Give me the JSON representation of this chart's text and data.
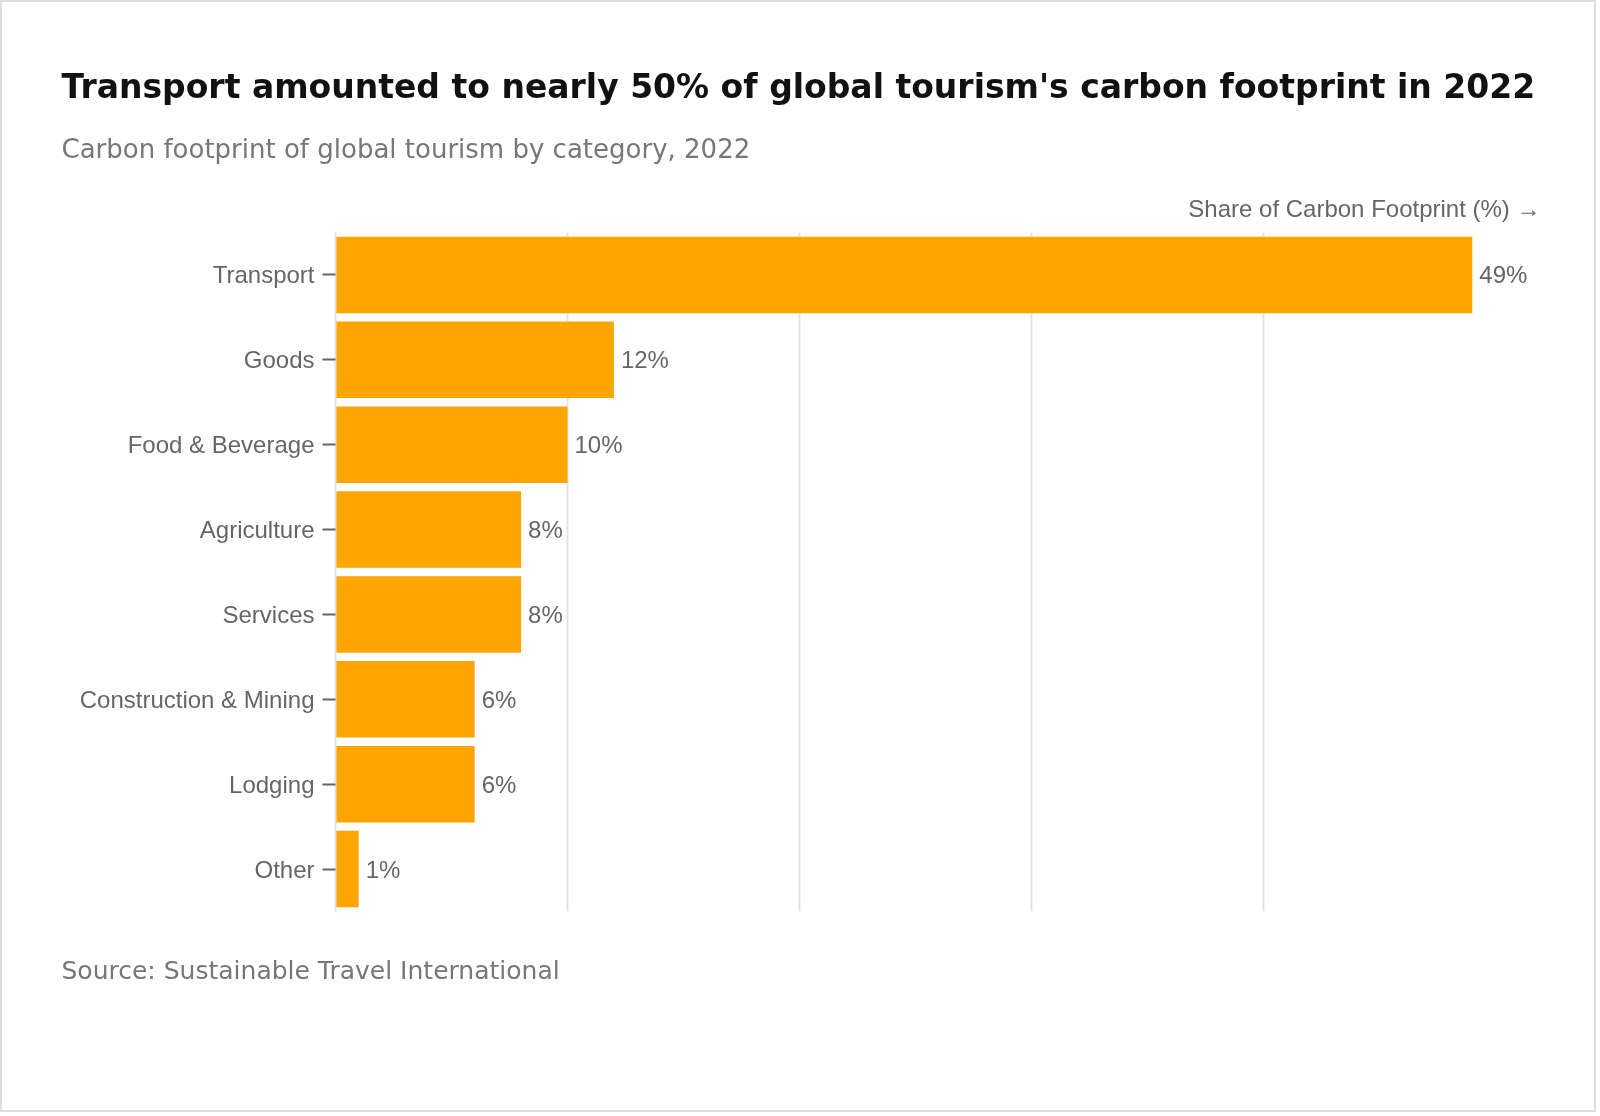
{
  "chart_data": {
    "type": "bar",
    "orientation": "horizontal",
    "title": "Transport amounted to nearly 50% of global tourism's carbon footprint in 2022",
    "subtitle": "Carbon footprint of global tourism by category, 2022",
    "xlabel": "Share of Carbon Footprint (%) →",
    "categories": [
      "Transport",
      "Goods",
      "Food & Beverage",
      "Agriculture",
      "Services",
      "Construction & Mining",
      "Lodging",
      "Other"
    ],
    "values": [
      49,
      12,
      10,
      8,
      8,
      6,
      6,
      1
    ],
    "value_labels": [
      "49%",
      "12%",
      "10%",
      "8%",
      "8%",
      "6%",
      "6%",
      "1%"
    ],
    "color": "#ffa500",
    "xticks": [
      {
        "value": 10,
        "label": null
      },
      {
        "value": 20,
        "label": null
      },
      {
        "value": 30,
        "label": null
      },
      {
        "value": 40,
        "label": null
      }
    ],
    "grid": "x",
    "tick_labels": "y",
    "annotations": [
      "Source: Sustainable Travel International"
    ]
  }
}
